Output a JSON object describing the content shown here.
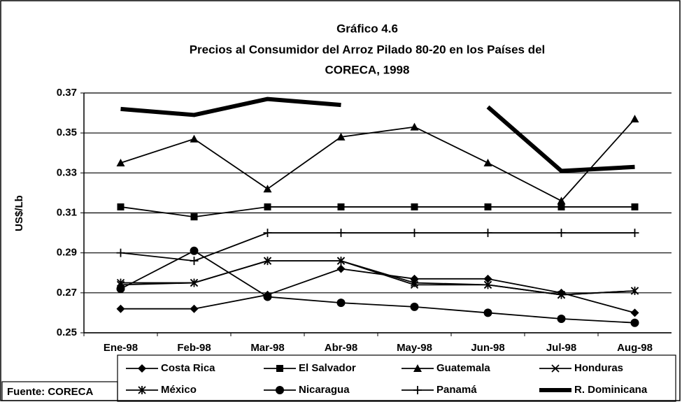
{
  "chart_data": {
    "type": "line",
    "title": [
      "Gráfico 4.6",
      "Precios al Consumidor del Arroz Pilado 80-20 en los Países del",
      "CORECA, 1998"
    ],
    "ylabel": "US$/Lb",
    "source": "Fuente: CORECA",
    "categories": [
      "Ene-98",
      "Feb-98",
      "Mar-98",
      "Abr-98",
      "May-98",
      "Jun-98",
      "Jul-98",
      "Aug-98"
    ],
    "ylim": [
      0.25,
      0.37
    ],
    "yticks": [
      0.25,
      0.27,
      0.29,
      0.31,
      0.33,
      0.35,
      0.37
    ],
    "grid": true,
    "legend": "bottom",
    "series": [
      {
        "name": "Costa Rica",
        "color": "#000000",
        "marker": "diamond",
        "values": [
          0.262,
          0.262,
          0.269,
          0.282,
          0.277,
          0.277,
          0.27,
          0.26
        ]
      },
      {
        "name": "El Salvador",
        "color": "#000000",
        "marker": "square",
        "values": [
          0.313,
          0.308,
          0.313,
          0.313,
          0.313,
          0.313,
          0.313,
          0.313
        ]
      },
      {
        "name": "Guatemala",
        "color": "#000000",
        "marker": "triangle",
        "values": [
          0.335,
          0.347,
          0.322,
          0.348,
          0.353,
          0.335,
          0.316,
          0.357
        ]
      },
      {
        "name": "Honduras",
        "color": "#000000",
        "marker": "x",
        "values": [
          0.274,
          0.275,
          0.286,
          0.286,
          0.274,
          0.274,
          0.269,
          0.271
        ]
      },
      {
        "name": "México",
        "color": "#000000",
        "marker": "asterisk",
        "values": [
          0.275,
          0.275,
          0.286,
          0.286,
          0.275,
          0.274,
          0.269,
          0.271
        ]
      },
      {
        "name": "Nicaragua",
        "color": "#000000",
        "marker": "circle",
        "values": [
          0.272,
          0.291,
          0.268,
          0.265,
          0.263,
          0.26,
          0.257,
          0.255
        ]
      },
      {
        "name": "Panamá",
        "color": "#000000",
        "marker": "plus",
        "values": [
          0.29,
          0.286,
          0.3,
          0.3,
          0.3,
          0.3,
          0.3,
          0.3
        ]
      },
      {
        "name": "R. Dominicana",
        "color": "#000000",
        "marker": "none",
        "values": [
          0.362,
          0.359,
          0.367,
          0.364,
          null,
          0.363,
          0.331,
          0.333
        ]
      }
    ]
  }
}
